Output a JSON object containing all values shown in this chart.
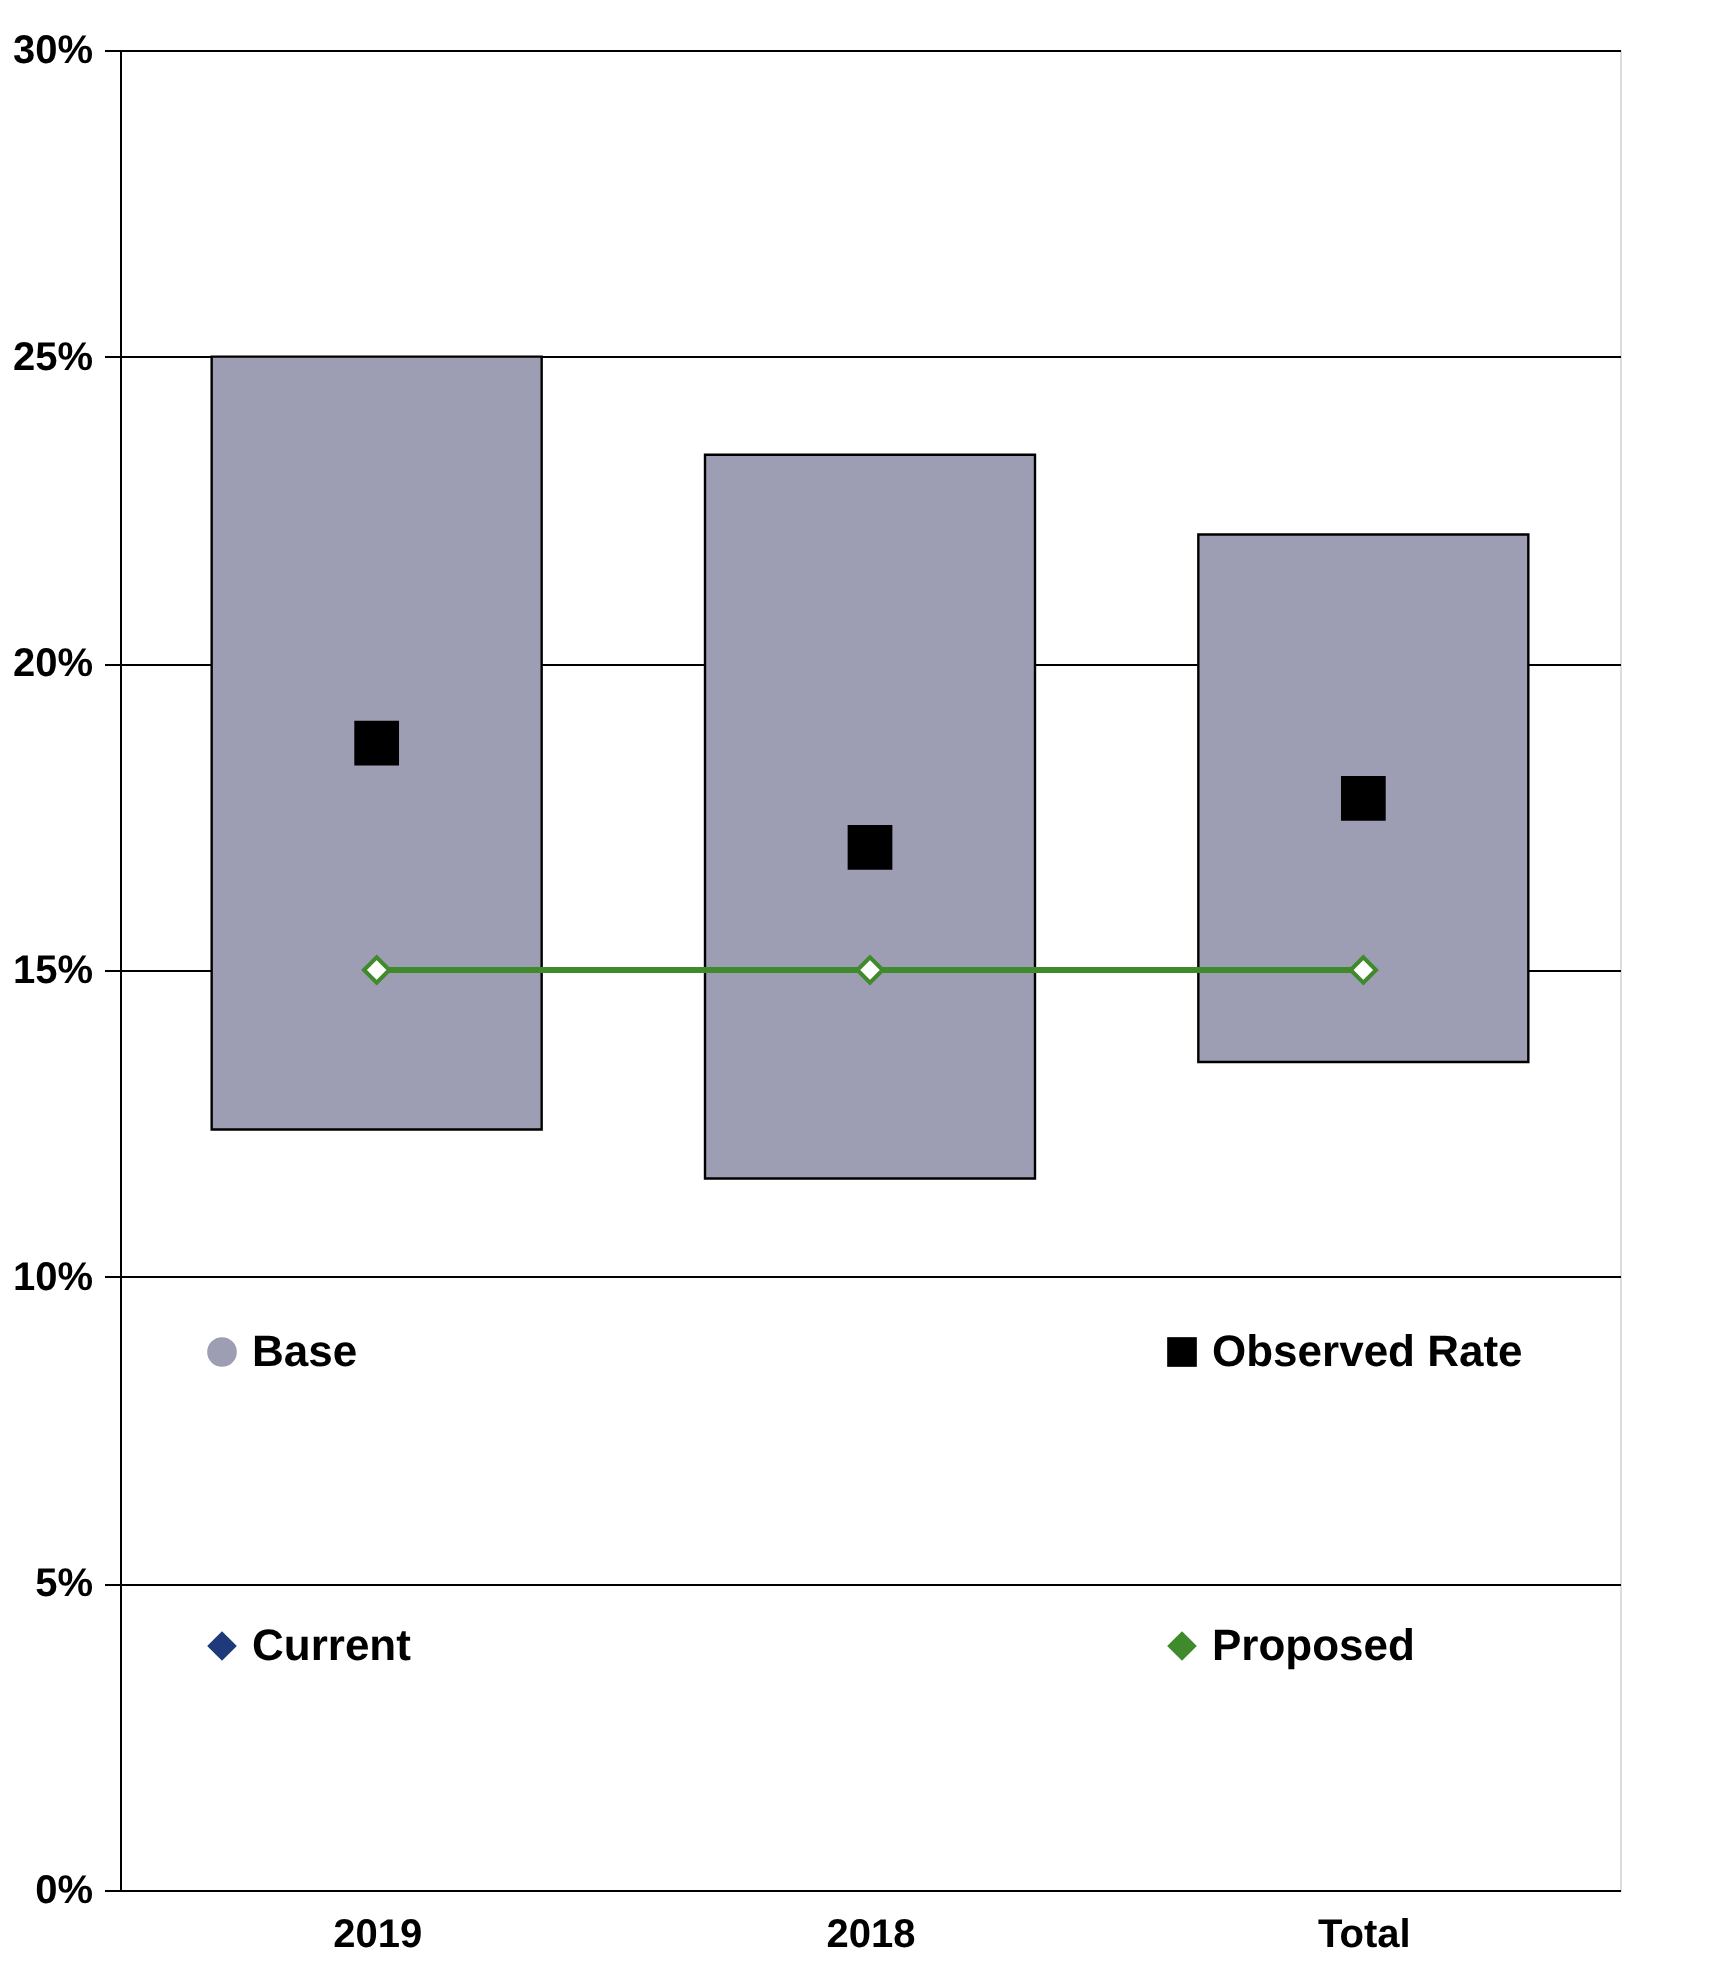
{
  "chart_data": {
    "type": "bar",
    "categories": [
      "2019",
      "2018",
      "Total"
    ],
    "series": [
      {
        "name": "Base",
        "color": "#9d9db3",
        "base": [
          12.4,
          11.6,
          13.5
        ],
        "values": [
          12.6,
          11.8,
          8.6
        ]
      },
      {
        "name": "Observed Rate",
        "type": "scatter",
        "marker": "square",
        "color": "#000000",
        "values": [
          18.7,
          17.0,
          17.8
        ]
      },
      {
        "name": "Current",
        "type": "line",
        "marker": "diamond",
        "color": "#1f3a7a",
        "values": [
          null,
          null,
          null
        ]
      },
      {
        "name": "Proposed",
        "type": "line",
        "marker": "diamond",
        "color": "#3f8a2a",
        "values": [
          15,
          15,
          15
        ]
      }
    ],
    "ylim": [
      0,
      30
    ],
    "yticks": [
      {
        "value": 0,
        "label": "0%"
      },
      {
        "value": 5,
        "label": "5%"
      },
      {
        "value": 10,
        "label": "10%"
      },
      {
        "value": 15,
        "label": "15%"
      },
      {
        "value": 20,
        "label": "20%"
      },
      {
        "value": 25,
        "label": "25%"
      },
      {
        "value": 30,
        "label": "30%"
      }
    ],
    "grid": "y",
    "legend": "bottom"
  }
}
